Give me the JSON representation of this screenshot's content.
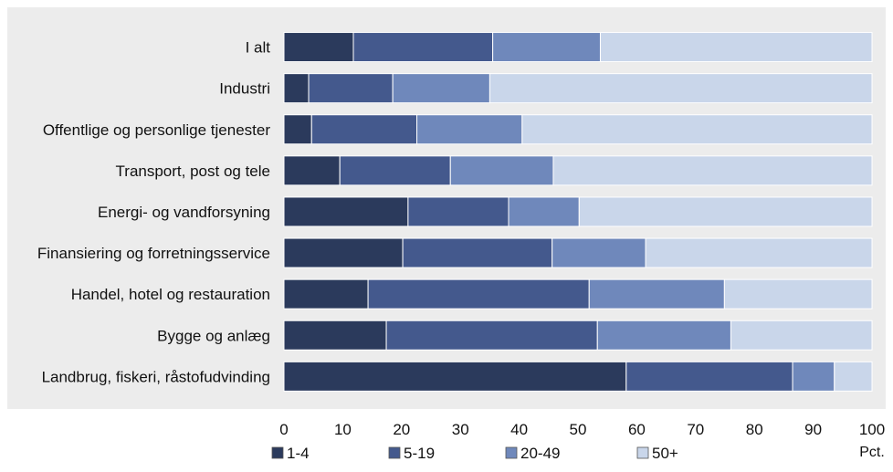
{
  "chart_data": {
    "type": "bar",
    "orientation": "horizontal",
    "stacked": true,
    "categories": [
      "I alt",
      "Industri",
      "Offentlige og personlige tjenester",
      "Transport, post og tele",
      "Energi- og vandforsyning",
      "Finansiering og forretningsservice",
      "Handel, hotel og restauration",
      "Bygge og anlæg",
      "Landbrug, fiskeri, råstofudvinding"
    ],
    "series": [
      {
        "name": "1-4",
        "color": "#2b3a5c",
        "values": [
          11.8,
          4.2,
          4.7,
          9.5,
          21.1,
          20.2,
          14.3,
          17.4,
          58.2
        ]
      },
      {
        "name": "5-19",
        "color": "#44598d",
        "values": [
          23.7,
          14.3,
          17.9,
          18.8,
          17.1,
          25.4,
          37.6,
          35.9,
          28.3
        ]
      },
      {
        "name": "20-49",
        "color": "#6f88bb",
        "values": [
          18.3,
          16.5,
          17.9,
          17.5,
          12.0,
          15.9,
          23.0,
          22.7,
          7.1
        ]
      },
      {
        "name": "50+",
        "color": "#c9d6ea",
        "values": [
          46.2,
          65.0,
          59.5,
          54.2,
          49.8,
          38.5,
          25.1,
          24.0,
          6.4
        ]
      }
    ],
    "x_ticks": [
      0,
      10,
      20,
      30,
      40,
      50,
      60,
      70,
      80,
      90,
      100
    ],
    "xlim": [
      0,
      100
    ],
    "x_unit": "Pct.",
    "grid": false,
    "legend_position": "bottom",
    "colors": {
      "plot_background": "#ececec",
      "bar_border": "#ffffff"
    }
  }
}
